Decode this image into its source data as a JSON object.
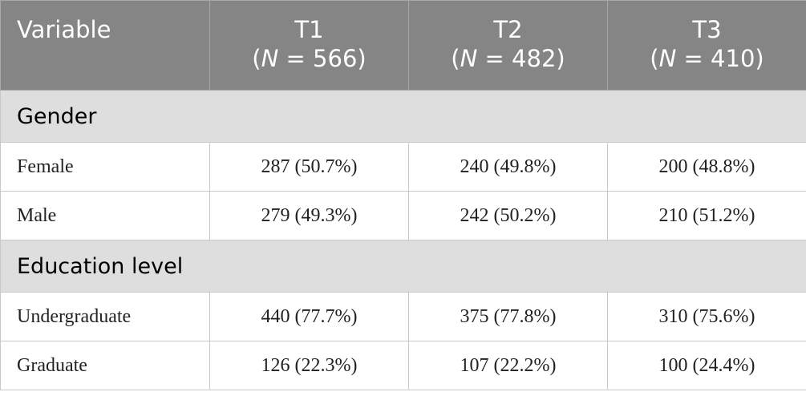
{
  "table": {
    "header": {
      "first": "Variable",
      "columns": [
        {
          "name": "T1",
          "sample": [
            "(",
            "N",
            " = 566)"
          ]
        },
        {
          "name": "T2",
          "sample": [
            "(",
            "N",
            " = 482)"
          ]
        },
        {
          "name": "T3",
          "sample": [
            "(",
            "N",
            " = 410)"
          ]
        }
      ]
    },
    "sections": [
      {
        "title": "Gender",
        "rows": [
          [
            "Female",
            "287 (50.7%)",
            "240 (49.8%)",
            "200 (48.8%)"
          ],
          [
            "Male",
            "279 (49.3%)",
            "242 (50.2%)",
            "210 (51.2%)"
          ]
        ]
      },
      {
        "title": "Education level",
        "rows": [
          [
            "Undergraduate",
            "440 (77.7%)",
            "375 (77.8%)",
            "310 (75.6%)"
          ],
          [
            "Graduate",
            "126 (22.3%)",
            "107 (22.2%)",
            "100 (24.4%)"
          ]
        ]
      }
    ]
  }
}
